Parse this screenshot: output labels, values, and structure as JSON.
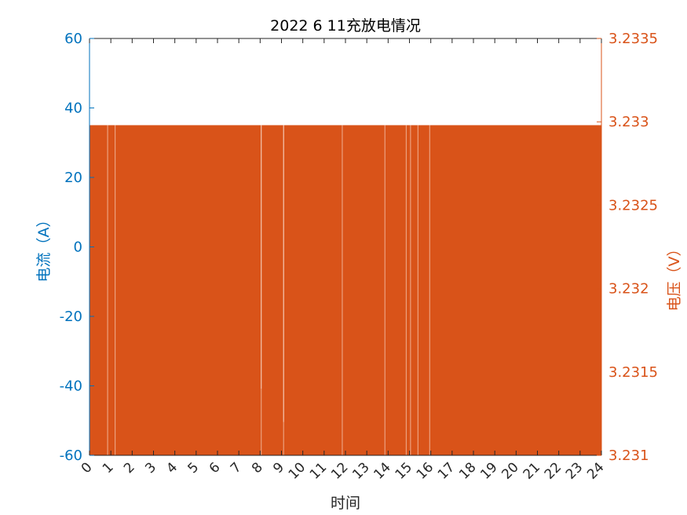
{
  "chart_data": {
    "type": "area",
    "title": "2022   6  11充放电情况",
    "xlabel": "时间",
    "ylabel_left": "电流（A）",
    "ylabel_right": "电压（V）",
    "xlim": [
      0,
      24
    ],
    "ylim_left": [
      -60,
      60
    ],
    "ylim_right": [
      3.231,
      3.2335
    ],
    "x_ticks": [
      "0",
      "1",
      "2",
      "3",
      "4",
      "5",
      "6",
      "7",
      "8",
      "9",
      "10",
      "11",
      "12",
      "13",
      "14",
      "15",
      "16",
      "17",
      "18",
      "19",
      "20",
      "21",
      "22",
      "23",
      "24"
    ],
    "y_left_ticks": [
      "60",
      "40",
      "20",
      "0",
      "-20",
      "-40",
      "-60"
    ],
    "y_right_ticks": [
      "3.2335",
      "3.233",
      "3.2325",
      "3.232",
      "3.2315",
      "3.231"
    ],
    "grid": false,
    "colors": {
      "left_axis": "#0072BD",
      "right_axis": "#D95319",
      "series": "#D95319",
      "gap": "#ECA07E"
    },
    "series": [
      {
        "axis": "right",
        "baseline": 3.231,
        "level": 3.23298,
        "x_range": [
          0,
          24
        ],
        "gaps": [
          0.85,
          1.2,
          8.05,
          9.1,
          11.85,
          13.85,
          14.85,
          15.05,
          15.4,
          15.95
        ],
        "dips": [
          {
            "x": 8.05,
            "value": 3.2314
          },
          {
            "x": 9.1,
            "value": 3.2312
          }
        ]
      }
    ]
  }
}
